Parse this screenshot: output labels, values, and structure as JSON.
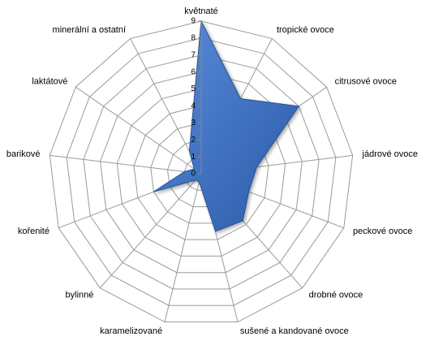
{
  "chart_data": {
    "type": "radar",
    "categories": [
      "květnaté",
      "tropické ovoce",
      "citrusové ovoce",
      "jádrové ovoce",
      "peckové ovoce",
      "drobné ovoce",
      "sušené a kandované  ovoce",
      "karamelizované",
      "bylinné",
      "kořenité",
      "barikové",
      "laktátové",
      "minerální a ostatní"
    ],
    "values": [
      9,
      5,
      7,
      3.3,
      3,
      3.7,
      3.5,
      0.5,
      0.5,
      3,
      1,
      0.5,
      1.5
    ],
    "color": "#3d72c8",
    "ylim": [
      0,
      9
    ],
    "yticks": [
      0,
      1,
      2,
      3,
      4,
      5,
      6,
      7,
      8,
      9
    ],
    "grid": true
  }
}
